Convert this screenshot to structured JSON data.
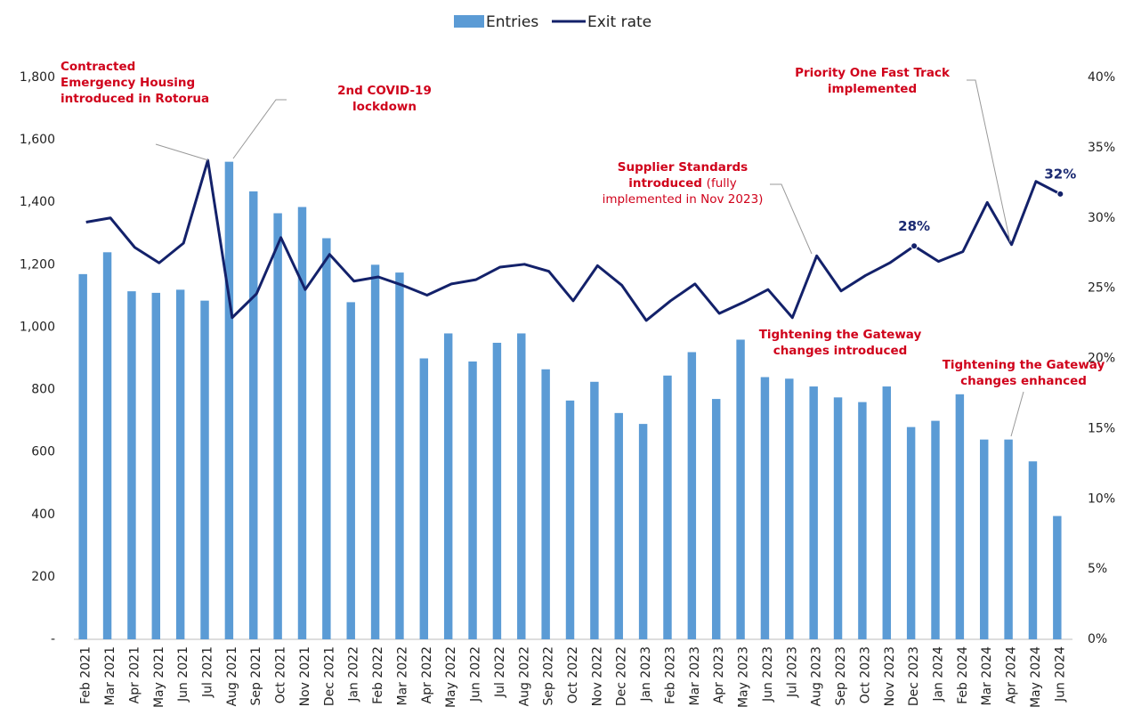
{
  "chart_data": {
    "type": "bar-line",
    "categories": [
      "Feb 2021",
      "Mar 2021",
      "Apr 2021",
      "May 2021",
      "Jun 2021",
      "Jul 2021",
      "Aug 2021",
      "Sep 2021",
      "Oct 2021",
      "Nov 2021",
      "Dec 2021",
      "Jan 2022",
      "Feb 2022",
      "Mar 2022",
      "Apr 2022",
      "May 2022",
      "Jun 2022",
      "Jul 2022",
      "Aug 2022",
      "Sep 2022",
      "Oct 2022",
      "Nov 2022",
      "Dec 2022",
      "Jan 2023",
      "Feb 2023",
      "Mar 2023",
      "Apr 2023",
      "May 2023",
      "Jun 2023",
      "Jul 2023",
      "Aug 2023",
      "Sep 2023",
      "Oct 2023",
      "Nov 2023",
      "Dec 2023",
      "Jan 2024",
      "Feb 2024",
      "Mar 2024",
      "Apr 2024",
      "May 2024",
      "Jun 2024"
    ],
    "series": [
      {
        "name": "Entries",
        "type": "bar",
        "color": "#5b9bd5",
        "values": [
          1170,
          1240,
          1115,
          1110,
          1120,
          1085,
          1530,
          1435,
          1365,
          1385,
          1285,
          1080,
          1200,
          1175,
          900,
          980,
          890,
          950,
          980,
          865,
          765,
          825,
          725,
          690,
          845,
          920,
          770,
          960,
          840,
          835,
          810,
          775,
          760,
          810,
          680,
          700,
          785,
          640,
          640,
          570,
          395
        ]
      },
      {
        "name": "Exit rate",
        "type": "line",
        "color": "#13216a",
        "axis": "y2",
        "values": [
          29.7,
          30.0,
          27.9,
          26.8,
          28.2,
          34.1,
          22.9,
          24.6,
          28.6,
          24.9,
          27.4,
          25.5,
          25.8,
          25.2,
          24.5,
          25.3,
          25.6,
          26.5,
          26.7,
          26.2,
          24.1,
          26.6,
          25.2,
          22.7,
          24.1,
          25.3,
          23.2,
          24.0,
          24.9,
          22.9,
          27.3,
          24.8,
          25.9,
          26.8,
          28.0,
          26.9,
          27.6,
          31.1,
          28.1,
          32.6,
          31.7
        ],
        "value_labels": [
          null,
          null,
          null,
          null,
          null,
          null,
          null,
          null,
          null,
          null,
          null,
          null,
          null,
          null,
          null,
          null,
          null,
          null,
          null,
          null,
          null,
          null,
          null,
          null,
          null,
          null,
          null,
          null,
          null,
          null,
          null,
          null,
          null,
          null,
          "28%",
          null,
          null,
          null,
          null,
          null,
          "32%"
        ]
      }
    ],
    "ylim": [
      0,
      1800
    ],
    "yticks": [
      {
        "value": 0,
        "label": "-"
      },
      200,
      400,
      600,
      800,
      {
        "value": 1000,
        "label": "1,000"
      },
      {
        "value": 1200,
        "label": "1,200"
      },
      {
        "value": 1400,
        "label": "1,400"
      },
      {
        "value": 1600,
        "label": "1,600"
      },
      {
        "value": 1800,
        "label": "1,800"
      }
    ],
    "y2lim": [
      0,
      40
    ],
    "y2ticks": [
      {
        "value": 0,
        "label": "0%"
      },
      {
        "value": 5,
        "label": "5%"
      },
      {
        "value": 10,
        "label": "10%"
      },
      {
        "value": 15,
        "label": "15%"
      },
      {
        "value": 20,
        "label": "20%"
      },
      {
        "value": 25,
        "label": "25%"
      },
      {
        "value": 30,
        "label": "30%"
      },
      {
        "value": 35,
        "label": "35%"
      },
      {
        "value": 40,
        "label": "40%"
      }
    ],
    "legend": "top",
    "annotations": [
      {
        "lines": [
          "Contracted",
          "Emergency Housing",
          "introduced in Rotorua"
        ]
      },
      {
        "lines": [
          "2nd COVID-19",
          "lockdown"
        ]
      },
      {
        "lines": [
          "Supplier Standards",
          "introduced",
          "(fully",
          "implemented in Nov 2023)"
        ]
      },
      {
        "lines": [
          "Tightening the Gateway",
          "changes introduced"
        ]
      },
      {
        "lines": [
          "Tightening the Gateway",
          "changes enhanced"
        ]
      },
      {
        "lines": [
          "Priority One Fast Track",
          "implemented"
        ]
      }
    ]
  }
}
